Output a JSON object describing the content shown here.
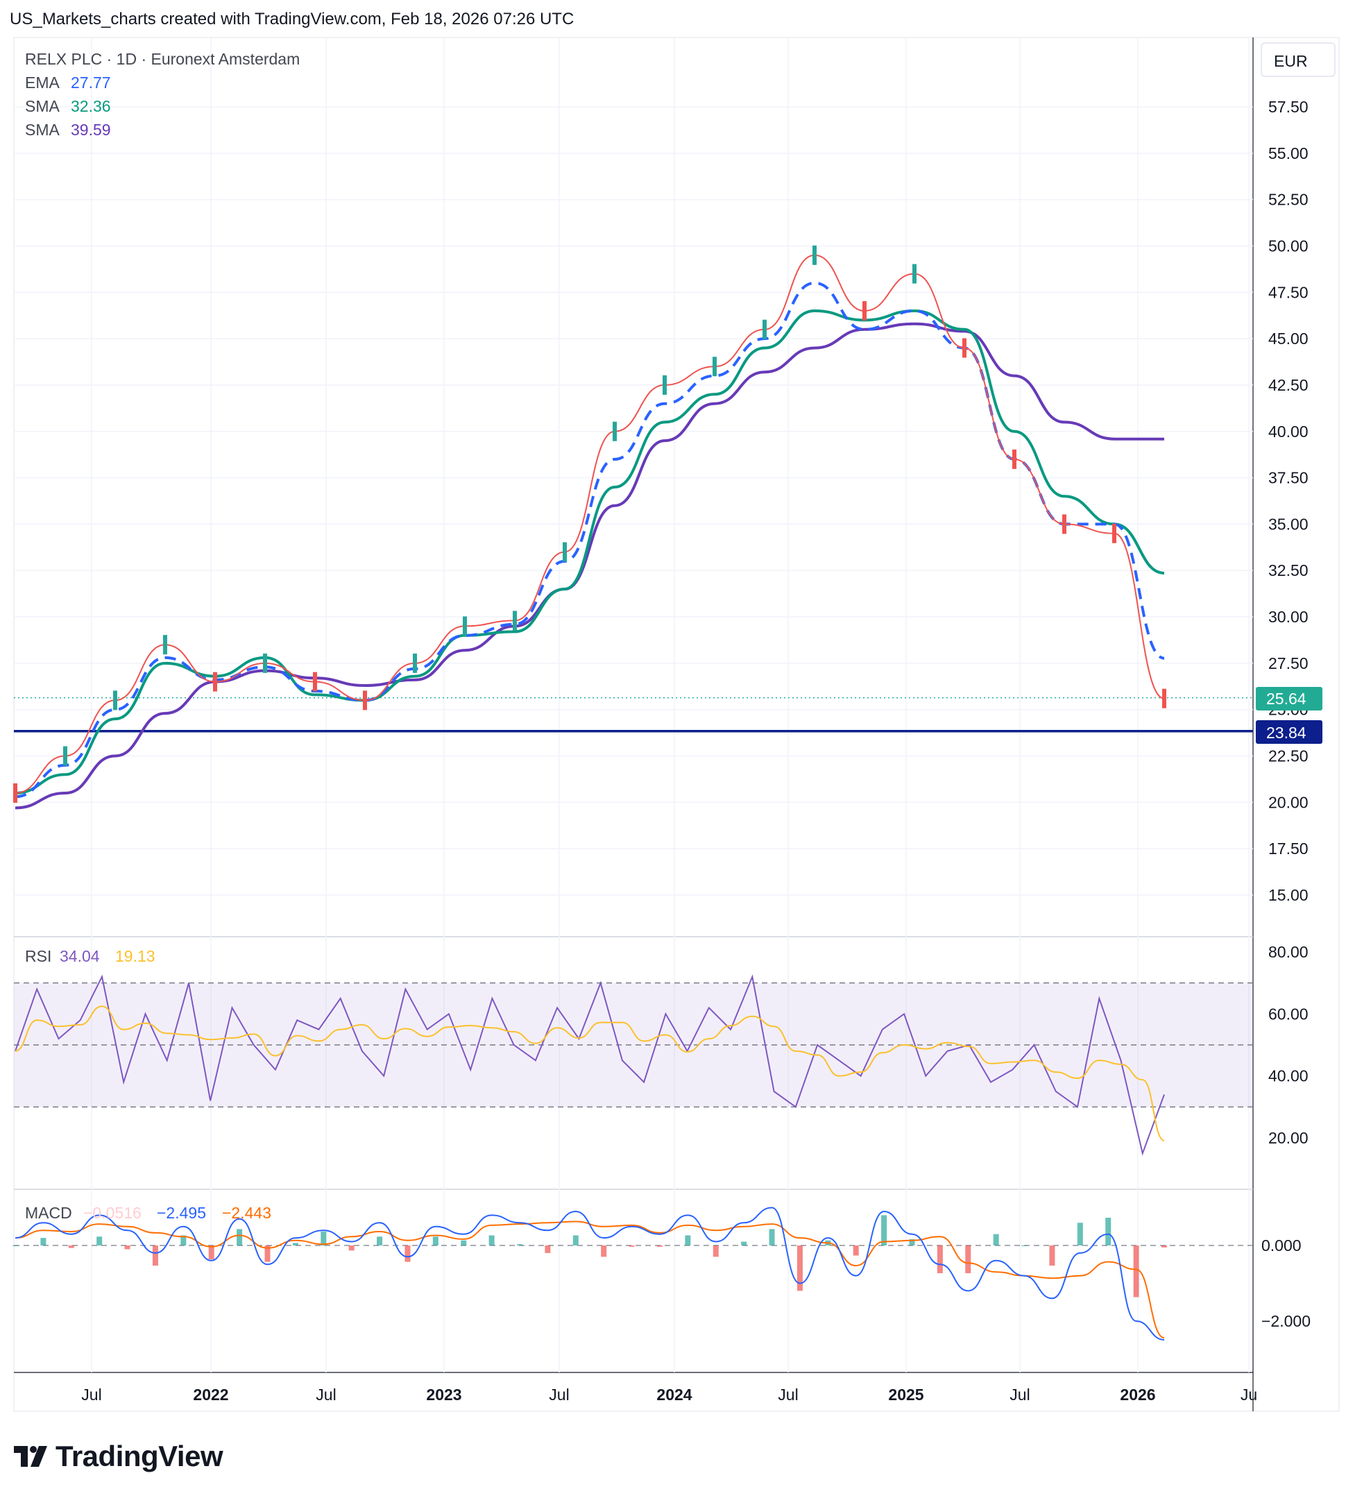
{
  "header": {
    "title": "US_Markets_charts created with TradingView.com, Feb 18, 2026 07:26 UTC"
  },
  "brand": {
    "name": "TradingView",
    "logo_icon": "tradingview-logo-icon"
  },
  "legend": {
    "symbol": "RELX PLC · 1D · Euronext Amsterdam",
    "ema": {
      "name": "EMA",
      "value": "27.77",
      "color": "#2962ff"
    },
    "sma1": {
      "name": "SMA",
      "value": "32.36",
      "color": "#089981"
    },
    "sma2": {
      "name": "SMA",
      "value": "39.59",
      "color": "#673ab7"
    }
  },
  "currency": "EUR",
  "price_axis": [
    "57.50",
    "55.00",
    "52.50",
    "50.00",
    "47.50",
    "45.00",
    "42.50",
    "40.00",
    "37.50",
    "35.00",
    "32.50",
    "30.00",
    "27.50",
    "25.00",
    "22.50",
    "20.00",
    "17.50",
    "15.00"
  ],
  "price_labels": {
    "last": {
      "value": "25.64",
      "color": "#22ab94"
    },
    "level": {
      "value": "23.84",
      "color": "#0d1f8c"
    }
  },
  "rsi": {
    "name": "RSI",
    "value": "34.04",
    "ma_value": "19.13",
    "value_color": "#7e57c2",
    "ma_color": "#fbc02d",
    "axis": [
      "80.00",
      "60.00",
      "40.00",
      "20.00"
    ]
  },
  "macd": {
    "name": "MACD",
    "hist": "−0.0516",
    "macd": "−2.495",
    "signal": "−2.443",
    "hist_color": "#ffcdd2",
    "macd_color": "#2962ff",
    "signal_color": "#ff6d00",
    "axis": [
      "0.000",
      "−2.000"
    ]
  },
  "time_axis": [
    "Jul",
    "2022",
    "Jul",
    "2023",
    "Jul",
    "2024",
    "Jul",
    "2025",
    "Jul",
    "2026",
    "Ju"
  ],
  "chart_data": {
    "type": "line",
    "title": "RELX PLC · 1D · Euronext Amsterdam",
    "xlabel": "",
    "ylabel": "EUR",
    "ylim": [
      13.5,
      59
    ],
    "x": [
      "2021-03",
      "2021-06",
      "2021-09",
      "2021-12",
      "2022-03",
      "2022-06",
      "2022-09",
      "2022-12",
      "2023-03",
      "2023-06",
      "2023-09",
      "2023-12",
      "2024-03",
      "2024-06",
      "2024-09",
      "2024-12",
      "2025-02",
      "2025-04",
      "2025-06",
      "2025-08",
      "2025-10",
      "2025-12",
      "2026-01",
      "2026-02"
    ],
    "series": [
      {
        "name": "Price",
        "values": [
          20.5,
          22.5,
          25.5,
          28.5,
          26.5,
          27.5,
          26.5,
          25.5,
          27.5,
          29.5,
          29.8,
          33.5,
          40.0,
          42.5,
          43.5,
          45.5,
          49.5,
          46.5,
          48.5,
          44.5,
          38.5,
          35.0,
          34.5,
          25.6
        ]
      },
      {
        "name": "EMA",
        "values": [
          20.3,
          22.0,
          25.0,
          27.8,
          26.6,
          27.3,
          26.0,
          25.5,
          27.2,
          29.0,
          29.6,
          33.0,
          38.5,
          41.5,
          43.0,
          45.0,
          48.0,
          45.5,
          46.5,
          44.5,
          38.5,
          35.0,
          35.0,
          27.77
        ]
      },
      {
        "name": "SMA",
        "values": [
          20.5,
          21.5,
          24.5,
          27.5,
          26.8,
          27.8,
          25.8,
          25.5,
          26.8,
          29.0,
          29.2,
          31.5,
          37.0,
          40.5,
          42.0,
          44.5,
          46.5,
          46.0,
          46.5,
          45.5,
          40.0,
          36.5,
          35.0,
          32.36
        ]
      },
      {
        "name": "SMA",
        "values": [
          19.7,
          20.5,
          22.5,
          24.8,
          26.5,
          27.1,
          26.7,
          26.3,
          26.6,
          28.2,
          29.5,
          31.5,
          36.0,
          39.5,
          41.5,
          43.2,
          44.5,
          45.5,
          45.8,
          45.4,
          43.0,
          40.5,
          39.59,
          39.59
        ]
      }
    ],
    "horizontal_line": 23.84,
    "rsi": {
      "ylim": [
        5,
        85
      ],
      "bands": [
        30,
        50,
        70
      ],
      "values": [
        48,
        68,
        52,
        58,
        72,
        38,
        60,
        45,
        70,
        32,
        62,
        50,
        42,
        58,
        55,
        65,
        48,
        40,
        68,
        55,
        60,
        42,
        65,
        50,
        45,
        62,
        52,
        70,
        45,
        38,
        60,
        48,
        62,
        55,
        72,
        35,
        30,
        50,
        45,
        40,
        55,
        60,
        40,
        48,
        50,
        38,
        42,
        50,
        35,
        30,
        65,
        45,
        15,
        34
      ]
    },
    "macd_data": {
      "ylim": [
        -3.5,
        1.2
      ],
      "values": [
        0.2,
        0.6,
        0.3,
        0.8,
        0.4,
        -0.2,
        0.5,
        -0.4,
        0.7,
        -0.5,
        0.2,
        0.4,
        0.1,
        0.6,
        -0.3,
        0.5,
        0.3,
        0.8,
        0.6,
        0.4,
        0.9,
        0.2,
        0.5,
        0.3,
        0.8,
        0.1,
        0.6,
        1.0,
        -1.0,
        0.2,
        -0.8,
        0.9,
        0.3,
        -0.5,
        -1.2,
        -0.4,
        -0.8,
        -1.4,
        -0.2,
        0.3,
        -2.0,
        -2.495
      ]
    }
  }
}
